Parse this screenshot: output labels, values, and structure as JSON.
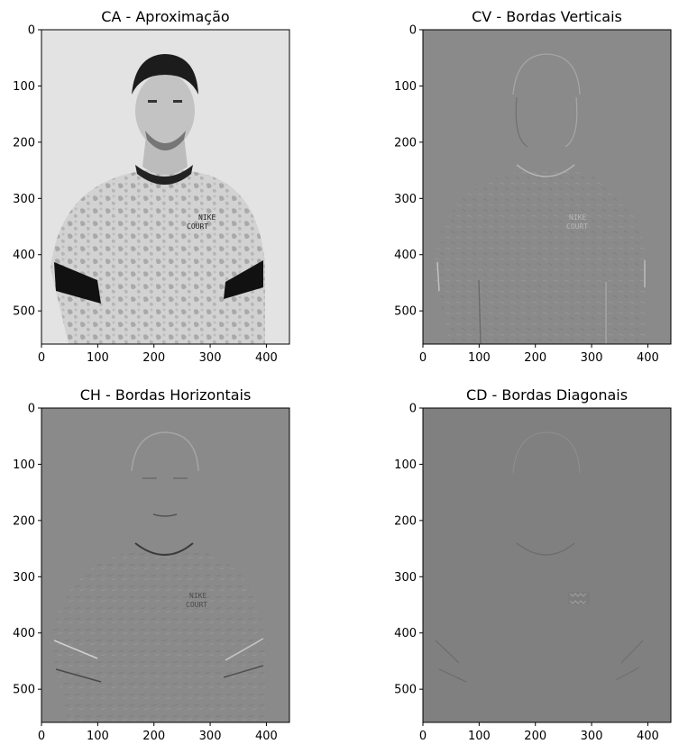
{
  "chart_data": [
    {
      "type": "image",
      "title": "CA - Aproximação",
      "xticks": [
        0,
        100,
        200,
        300,
        400
      ],
      "yticks": [
        0,
        100,
        200,
        300,
        400,
        500
      ],
      "xlim": [
        0,
        441
      ],
      "ylim": [
        559,
        0
      ],
      "background": "#e6e6e6",
      "content": "grayscale photo of man in patterned t-shirt, NIKE COURT logo",
      "logo_text": [
        "NIKE",
        "COURT"
      ]
    },
    {
      "type": "image",
      "title": "CV - Bordas Verticais",
      "xticks": [
        0,
        100,
        200,
        300,
        400
      ],
      "yticks": [
        0,
        100,
        200,
        300,
        400,
        500
      ],
      "xlim": [
        0,
        441
      ],
      "ylim": [
        559,
        0
      ],
      "background": "#8a8a8a",
      "content": "vertical edge detail coefficients",
      "logo_text": [
        "NIKE",
        "COURT"
      ]
    },
    {
      "type": "image",
      "title": "CH - Bordas Horizontais",
      "xticks": [
        0,
        100,
        200,
        300,
        400
      ],
      "yticks": [
        0,
        100,
        200,
        300,
        400,
        500
      ],
      "xlim": [
        0,
        441
      ],
      "ylim": [
        559,
        0
      ],
      "background": "#8a8a8a",
      "content": "horizontal edge detail coefficients",
      "logo_text": [
        "NIKE",
        "COURT"
      ]
    },
    {
      "type": "image",
      "title": "CD - Bordas Diagonais",
      "xticks": [
        0,
        100,
        200,
        300,
        400
      ],
      "yticks": [
        0,
        100,
        200,
        300,
        400,
        500
      ],
      "xlim": [
        0,
        441
      ],
      "ylim": [
        559,
        0
      ],
      "background": "#808080",
      "content": "diagonal edge detail coefficients",
      "logo_text": []
    }
  ]
}
